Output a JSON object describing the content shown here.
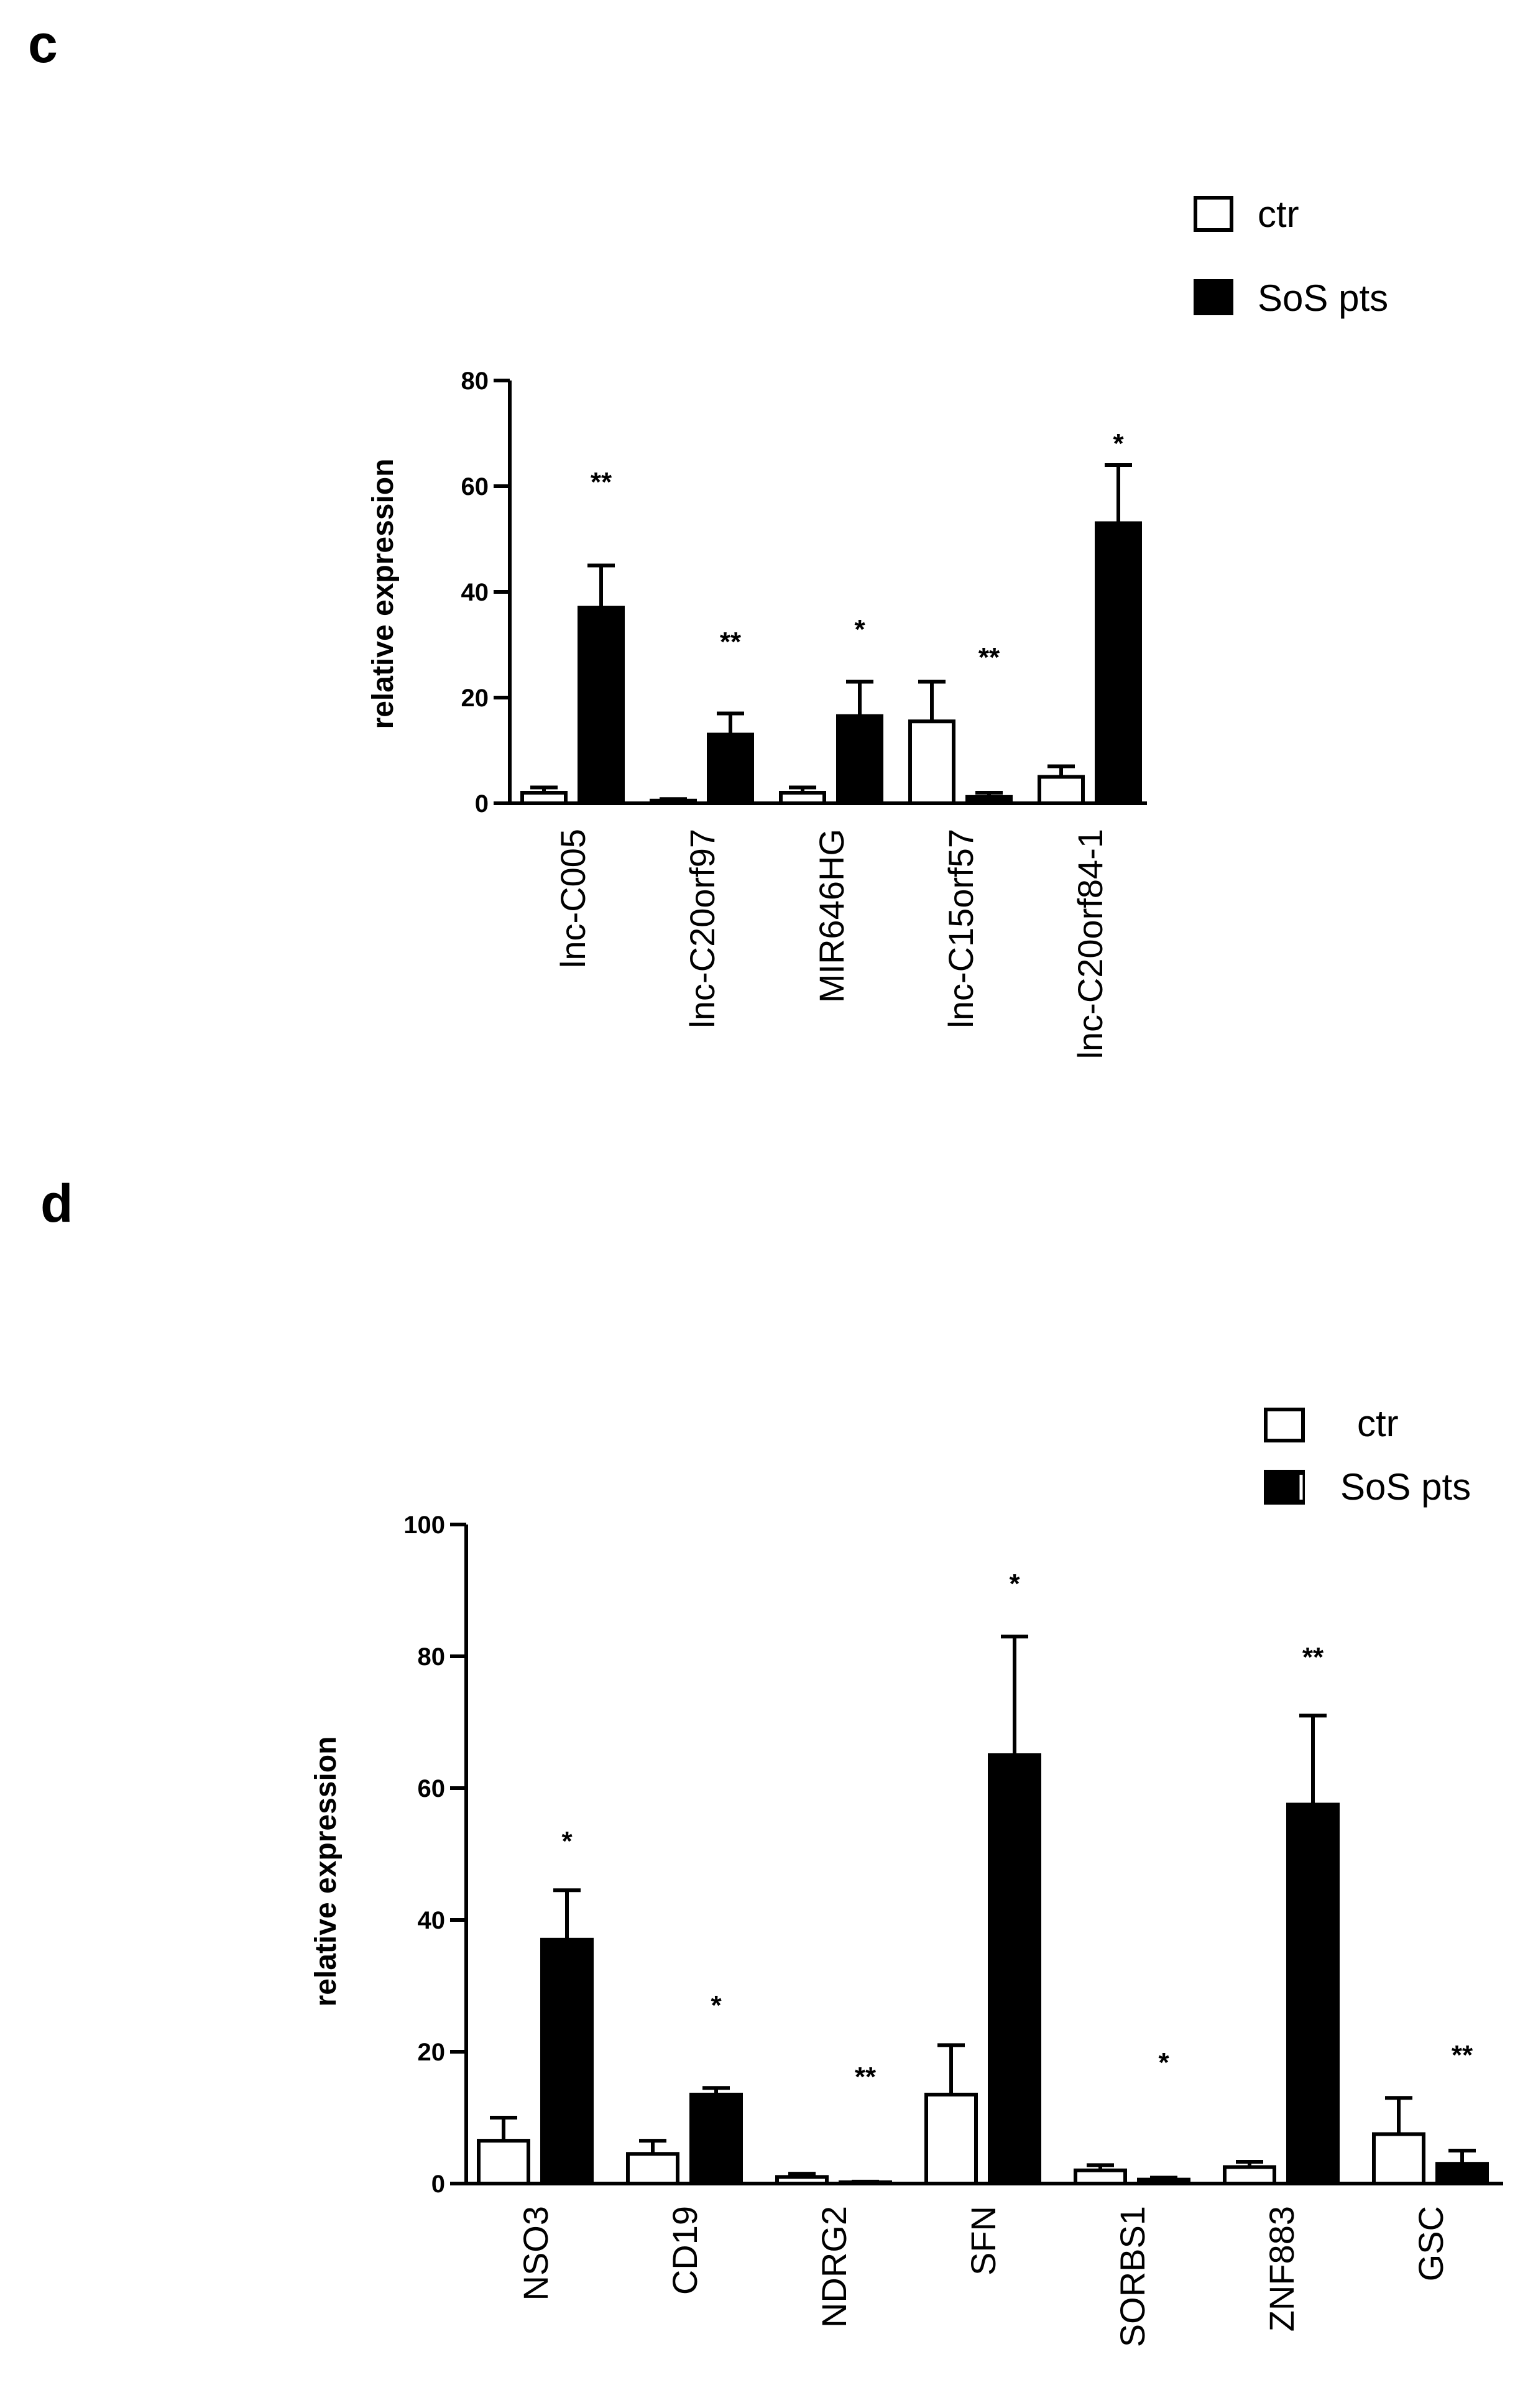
{
  "panels": [
    {
      "label": "c",
      "legend": {
        "ctr": "ctr",
        "sos": "SoS pts"
      }
    },
    {
      "label": "d",
      "legend": {
        "ctr": "ctr",
        "sos": "SoS pts"
      }
    }
  ],
  "chart_data": [
    {
      "type": "bar",
      "ylabel": "relative expression",
      "ylim": [
        0,
        80
      ],
      "yticks": [
        "0",
        "20",
        "40",
        "60",
        "80"
      ],
      "categories": [
        "lnc-C005",
        "lnc-C20orf97",
        "MIR646HG",
        "lnc-C15orf57",
        "lnc-C20orf84-1"
      ],
      "series": [
        {
          "name": "ctr",
          "values": [
            2,
            0.5,
            2,
            15.5,
            5
          ],
          "errors": [
            1,
            0.3,
            1,
            7.5,
            2
          ],
          "color": "#ffffff"
        },
        {
          "name": "SoS pts",
          "values": [
            37,
            13,
            16.5,
            1.2,
            53
          ],
          "errors": [
            8,
            4,
            6.5,
            0.8,
            11
          ],
          "color": "#000000"
        }
      ],
      "significance": [
        "**",
        "**",
        "*",
        "**",
        "*"
      ],
      "legend_position": "top-right",
      "grid": false
    },
    {
      "type": "bar",
      "ylabel": "relative expression",
      "ylim": [
        0,
        100
      ],
      "yticks": [
        "0",
        "20",
        "40",
        "60",
        "80",
        "100"
      ],
      "categories": [
        "NSO3",
        "CD19",
        "NDRG2",
        "SFN",
        "SORBS1",
        "ZNF883",
        "GSC"
      ],
      "series": [
        {
          "name": "ctr",
          "values": [
            6.5,
            4.5,
            1,
            13.5,
            2,
            2.5,
            7.5
          ],
          "errors": [
            3.5,
            2,
            0.5,
            7.5,
            0.8,
            0.8,
            5.5
          ],
          "color": "#ffffff"
        },
        {
          "name": "SoS pts",
          "values": [
            37,
            13.5,
            0.2,
            65,
            0.6,
            57.5,
            3
          ],
          "errors": [
            7.5,
            1,
            0.1,
            18,
            0.3,
            13.5,
            2
          ],
          "color": "#000000"
        }
      ],
      "significance": [
        "*",
        "*",
        "**",
        "*",
        "*",
        "**",
        "**"
      ],
      "legend_position": "top-right",
      "grid": false
    }
  ]
}
